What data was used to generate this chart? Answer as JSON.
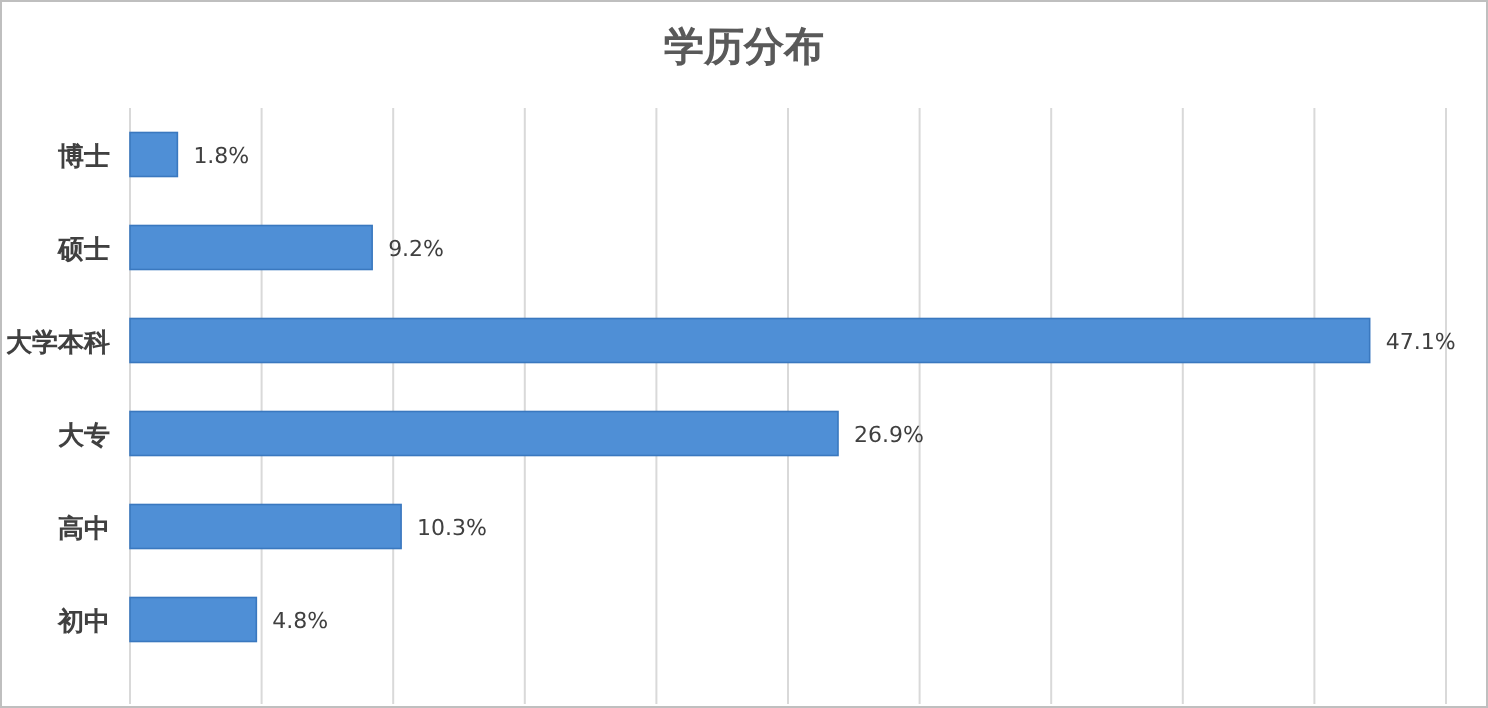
{
  "chart_data": {
    "type": "bar",
    "orientation": "horizontal",
    "title": "学历分布",
    "categories": [
      "博士",
      "硕士",
      "大学本科",
      "大专",
      "高中",
      "初中"
    ],
    "values": [
      1.8,
      9.2,
      47.1,
      26.9,
      10.3,
      4.8
    ],
    "value_labels": [
      "1.8%",
      "9.2%",
      "47.1%",
      "26.9%",
      "10.3%",
      "4.8%"
    ],
    "color": "#4f8fd6",
    "xlim": [
      0,
      50
    ],
    "xticks": [
      {
        "value": 0,
        "label": null
      },
      {
        "value": 5,
        "label": null
      },
      {
        "value": 10,
        "label": null
      },
      {
        "value": 15,
        "label": null
      },
      {
        "value": 20,
        "label": null
      },
      {
        "value": 25,
        "label": null
      },
      {
        "value": 30,
        "label": null
      },
      {
        "value": 35,
        "label": null
      },
      {
        "value": 40,
        "label": null
      },
      {
        "value": 45,
        "label": null
      },
      {
        "value": 50,
        "label": null
      }
    ],
    "grid": "x",
    "tick_labels": "y"
  }
}
